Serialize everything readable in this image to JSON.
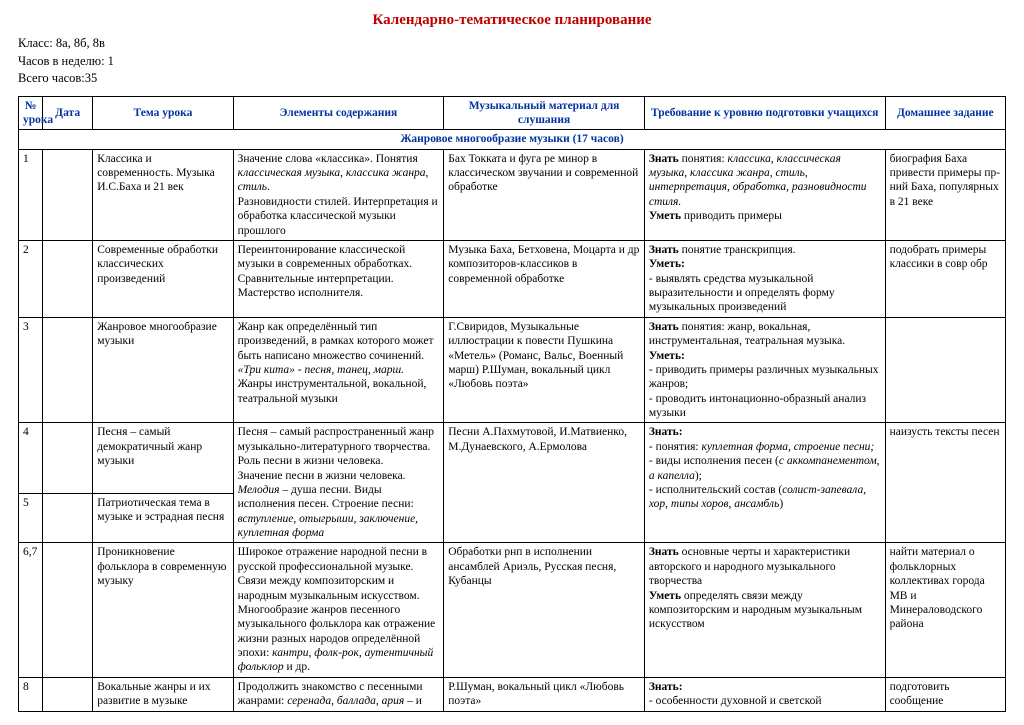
{
  "title": "Календарно-тематическое планирование",
  "meta": {
    "class_label": "Класс: ",
    "class_value": "8а, 8б, 8в",
    "hours_week": "Часов в неделю: 1",
    "hours_total": "Всего часов:35"
  },
  "headers": {
    "num": "№ урока",
    "date": "Дата",
    "topic": "Тема урока",
    "elements": "Элементы содержания",
    "material": "Музыкальный материал для слушания",
    "requirements": "Требование к уровню подготовки учащихся",
    "homework": "Домашнее задание"
  },
  "section1": "Жанровое многообразие музыки (17 часов)",
  "r1": {
    "num": "1",
    "topic": "Классика и современность. Музыка И.С.Баха и 21 век",
    "elem1": "Значение слова «классика». Понятия ",
    "elem2": "классическая музыка, классика жанра, стиль",
    "elem3": ".",
    "elem4": "Разновидности стилей. Интерпретация и обработка классической музыки прошлого",
    "mat": "Бах Токката и фуга ре минор в классическом звучании и современной обработке",
    "req1": "Знать",
    "req2": " понятия: ",
    "req3": "классика, классическая музыка, классика жанра, стиль, интерпретация, обработка, разновидности стиля.",
    "req4": "Уметь",
    "req5": " приводить примеры",
    "home": "биография Баха привести примеры пр-ний Баха, популярных в 21 веке"
  },
  "r2": {
    "num": "2",
    "topic": "Современные обработки классических произведений",
    "elem": "Переинтонирование классической музыки в современных обработках. Сравнительные интерпретации. Мастерство исполнителя.",
    "mat": "Музыка Баха, Бетховена, Моцарта и др композиторов-классиков в современной обработке",
    "req1": "Знать",
    "req2": " понятие транскрипция.",
    "req3": "Уметь:",
    "req4": "- выявлять средства музыкальной выразительности и определять форму музыкальных произведений",
    "home": "подобрать примеры классики в совр обр"
  },
  "r3": {
    "num": "3",
    "topic": "Жанровое многообразие музыки",
    "elem1": "Жанр как определённый тип произведений, в рамках которого может быть написано множество сочинений. ",
    "elem2": "«Три кита» - песня, танец, марш.",
    "elem3": " Жанры инструментальной, вокальной, театральной музыки",
    "mat": "Г.Свиридов, Музыкальные иллюстрации к повести Пушкина «Метель» (Романс, Вальс, Военный марш) Р.Шуман, вокальный цикл «Любовь поэта»",
    "req1": "Знать",
    "req2": " понятия: жанр, вокальная, инструментальная, театральная музыка.",
    "req3": "Уметь:",
    "req4": "- приводить примеры различных музыкальных жанров;",
    "req5": "- проводить интонационно-образный анализ музыки",
    "home": ""
  },
  "r4": {
    "num": "4",
    "topic": "Песня – самый демократичный жанр музыки",
    "elem1": "Песня – самый распространенный жанр музыкально-литературного творчества. Роль песни в жизни человека.",
    "elem2": "Значение песни в жизни человека. ",
    "elem3": "Мелодия",
    "elem4": " – душа песни. Виды исполнения песен. Строение песни: ",
    "elem5": "вступление, отыгрыши, заключение, куплетная форма",
    "mat": "Песни А.Пахмутовой, И.Матвиенко, М.Дунаевского, А.Ермолова",
    "req1": "Знать:",
    "req2": "- понятия: ",
    "req3": "куплетная форма, строение песни;",
    "req4": "- виды исполнения песен (",
    "req5": "с аккомпанементом, а капелла",
    "req6": ");",
    "req7": "- исполнительский состав (",
    "req8": "солист-запевала, хор, типы хоров, ансамбль",
    "req9": ")",
    "home": "наизусть тексты песен"
  },
  "r5": {
    "num": "5",
    "topic": "Патриотическая тема в музыке и эстрадная песня"
  },
  "r67": {
    "num": "6,7",
    "topic": "Проникновение фольклора в современную музыку",
    "elem1": "Широкое отражение народной песни в русской профессиональной музыке. Связи между композиторским и народным музыкальным искусством. Многообразие жанров песенного музыкального фольклора как отражение жизни разных народов определённой эпохи: ",
    "elem2": "кантри, фолк-рок, аутентичный фольклор",
    "elem3": " и др.",
    "mat": "Обработки рнп в исполнении ансамблей Ариэль, Русская песня, Кубанцы",
    "req1": "Знать",
    "req2": " основные черты и характеристики авторского и народного музыкального творчества",
    "req3": "Уметь",
    "req4": " определять связи между композиторским и народным музыкальным искусством",
    "home": "найти материал о фольклорных коллективах города МВ и Минераловодского района"
  },
  "r8": {
    "num": "8",
    "topic": "Вокальные жанры и их развитие в музыке",
    "elem1": "Продолжить знакомство с песенными жанрами: ",
    "elem2": "серенада, баллада, ария",
    "elem3": " – и",
    "mat": "Р.Шуман, вокальный цикл «Любовь поэта»",
    "req1": "Знать:",
    "req2": "- особенности духовной и светской",
    "home": "подготовить сообщение"
  }
}
